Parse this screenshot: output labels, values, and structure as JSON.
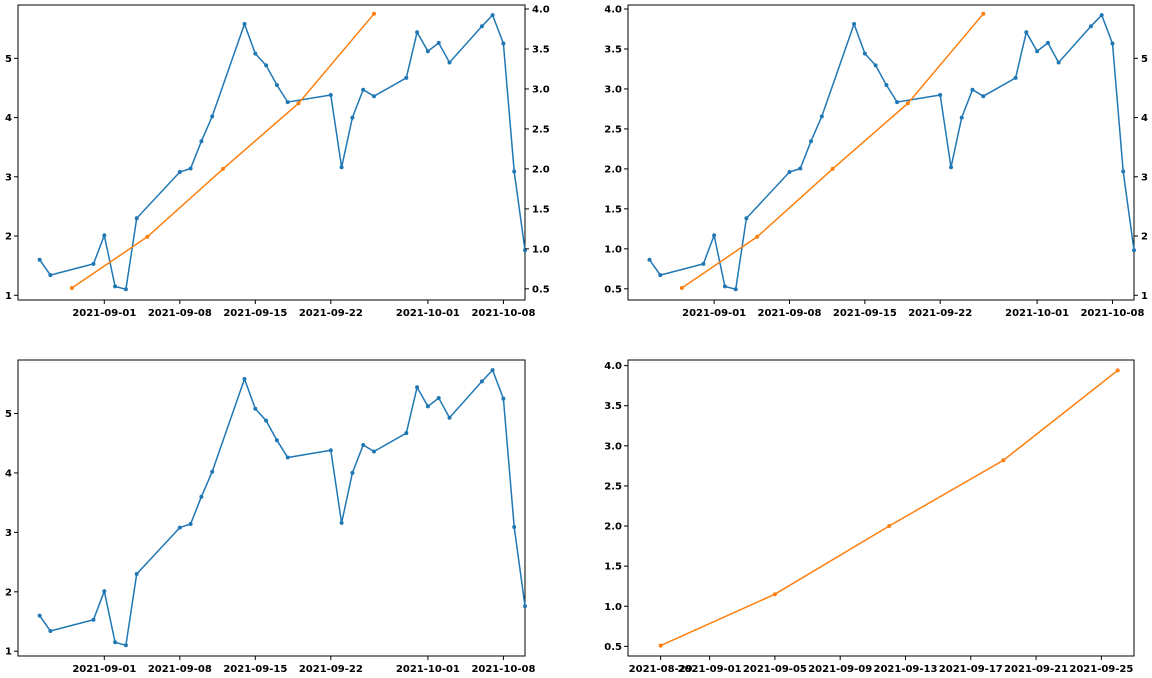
{
  "colors": {
    "blue": "#1f77b4",
    "orange": "#ff7f0e"
  },
  "chart_data": [
    {
      "panel": "top-left",
      "type": "line",
      "xlabel": "",
      "ylabel": "",
      "x_is_date": true,
      "xlim": [
        "2021-08-24",
        "2021-10-10"
      ],
      "ylim": [
        0.92,
        5.9
      ],
      "y2lim": [
        0.36,
        4.05
      ],
      "xticks": [
        "2021-09-01",
        "2021-09-08",
        "2021-09-15",
        "2021-09-22",
        "2021-10-01",
        "2021-10-08"
      ],
      "yticks": [
        "1",
        "2",
        "3",
        "4",
        "5"
      ],
      "y2ticks": [
        "0.5",
        "1.0",
        "1.5",
        "2.0",
        "2.5",
        "3.0",
        "3.5",
        "4.0"
      ],
      "grid": false,
      "series": [
        {
          "axis": "left",
          "color": "blue",
          "x": [
            "2021-08-26",
            "2021-08-27",
            "2021-08-31",
            "2021-09-01",
            "2021-09-02",
            "2021-09-03",
            "2021-09-04",
            "2021-09-08",
            "2021-09-09",
            "2021-09-10",
            "2021-09-11",
            "2021-09-14",
            "2021-09-15",
            "2021-09-16",
            "2021-09-17",
            "2021-09-18",
            "2021-09-22",
            "2021-09-23",
            "2021-09-24",
            "2021-09-25",
            "2021-09-26",
            "2021-09-29",
            "2021-09-30",
            "2021-10-01",
            "2021-10-02",
            "2021-10-03",
            "2021-10-06",
            "2021-10-07",
            "2021-10-08",
            "2021-10-09",
            "2021-10-10"
          ],
          "y": [
            1.6,
            1.34,
            1.53,
            2.01,
            1.15,
            1.1,
            2.3,
            3.08,
            3.14,
            3.6,
            4.02,
            5.58,
            5.08,
            4.88,
            4.55,
            4.26,
            4.38,
            3.16,
            4.0,
            4.47,
            4.36,
            4.67,
            5.44,
            5.12,
            5.26,
            4.93,
            5.54,
            5.73,
            5.25,
            3.09,
            1.76
          ]
        },
        {
          "axis": "right",
          "color": "orange",
          "x": [
            "2021-08-29",
            "2021-09-05",
            "2021-09-12",
            "2021-09-19",
            "2021-09-26"
          ],
          "y": [
            0.51,
            1.15,
            2.0,
            2.82,
            3.94
          ]
        }
      ]
    },
    {
      "panel": "top-right",
      "type": "line",
      "xlabel": "",
      "ylabel": "",
      "x_is_date": true,
      "xlim": [
        "2021-08-24",
        "2021-10-10"
      ],
      "ylim": [
        0.36,
        4.05
      ],
      "y2lim": [
        0.92,
        5.9
      ],
      "xticks": [
        "2021-09-01",
        "2021-09-08",
        "2021-09-15",
        "2021-09-22",
        "2021-10-01",
        "2021-10-08"
      ],
      "yticks": [
        "0.5",
        "1.0",
        "1.5",
        "2.0",
        "2.5",
        "3.0",
        "3.5",
        "4.0"
      ],
      "y2ticks": [
        "1",
        "2",
        "3",
        "4",
        "5"
      ],
      "grid": false,
      "series": [
        {
          "axis": "right",
          "color": "blue",
          "x": [
            "2021-08-26",
            "2021-08-27",
            "2021-08-31",
            "2021-09-01",
            "2021-09-02",
            "2021-09-03",
            "2021-09-04",
            "2021-09-08",
            "2021-09-09",
            "2021-09-10",
            "2021-09-11",
            "2021-09-14",
            "2021-09-15",
            "2021-09-16",
            "2021-09-17",
            "2021-09-18",
            "2021-09-22",
            "2021-09-23",
            "2021-09-24",
            "2021-09-25",
            "2021-09-26",
            "2021-09-29",
            "2021-09-30",
            "2021-10-01",
            "2021-10-02",
            "2021-10-03",
            "2021-10-06",
            "2021-10-07",
            "2021-10-08",
            "2021-10-09",
            "2021-10-10"
          ],
          "y": [
            1.6,
            1.34,
            1.53,
            2.01,
            1.15,
            1.1,
            2.3,
            3.08,
            3.14,
            3.6,
            4.02,
            5.58,
            5.08,
            4.88,
            4.55,
            4.26,
            4.38,
            3.16,
            4.0,
            4.47,
            4.36,
            4.67,
            5.44,
            5.12,
            5.26,
            4.93,
            5.54,
            5.73,
            5.25,
            3.09,
            1.76
          ]
        },
        {
          "axis": "left",
          "color": "orange",
          "x": [
            "2021-08-29",
            "2021-09-05",
            "2021-09-12",
            "2021-09-19",
            "2021-09-26"
          ],
          "y": [
            0.51,
            1.15,
            2.0,
            2.82,
            3.94
          ]
        }
      ]
    },
    {
      "panel": "bottom-left",
      "type": "line",
      "xlabel": "",
      "ylabel": "",
      "x_is_date": true,
      "xlim": [
        "2021-08-24",
        "2021-10-10"
      ],
      "ylim": [
        0.92,
        5.9
      ],
      "xticks": [
        "2021-09-01",
        "2021-09-08",
        "2021-09-15",
        "2021-09-22",
        "2021-10-01",
        "2021-10-08"
      ],
      "yticks": [
        "1",
        "2",
        "3",
        "4",
        "5"
      ],
      "grid": false,
      "series": [
        {
          "axis": "left",
          "color": "blue",
          "x": [
            "2021-08-26",
            "2021-08-27",
            "2021-08-31",
            "2021-09-01",
            "2021-09-02",
            "2021-09-03",
            "2021-09-04",
            "2021-09-08",
            "2021-09-09",
            "2021-09-10",
            "2021-09-11",
            "2021-09-14",
            "2021-09-15",
            "2021-09-16",
            "2021-09-17",
            "2021-09-18",
            "2021-09-22",
            "2021-09-23",
            "2021-09-24",
            "2021-09-25",
            "2021-09-26",
            "2021-09-29",
            "2021-09-30",
            "2021-10-01",
            "2021-10-02",
            "2021-10-03",
            "2021-10-06",
            "2021-10-07",
            "2021-10-08",
            "2021-10-09",
            "2021-10-10"
          ],
          "y": [
            1.6,
            1.34,
            1.53,
            2.01,
            1.15,
            1.1,
            2.3,
            3.08,
            3.14,
            3.6,
            4.02,
            5.58,
            5.08,
            4.88,
            4.55,
            4.26,
            4.38,
            3.16,
            4.0,
            4.47,
            4.36,
            4.67,
            5.44,
            5.12,
            5.26,
            4.93,
            5.54,
            5.73,
            5.25,
            3.09,
            1.76
          ]
        }
      ]
    },
    {
      "panel": "bottom-right",
      "type": "line",
      "xlabel": "",
      "ylabel": "",
      "x_is_date": true,
      "xlim": [
        "2021-08-27",
        "2021-09-27"
      ],
      "ylim": [
        0.38,
        4.07
      ],
      "xticks": [
        "2021-08-29",
        "2021-09-01",
        "2021-09-05",
        "2021-09-09",
        "2021-09-13",
        "2021-09-17",
        "2021-09-21",
        "2021-09-25"
      ],
      "yticks": [
        "0.5",
        "1.0",
        "1.5",
        "2.0",
        "2.5",
        "3.0",
        "3.5",
        "4.0"
      ],
      "grid": false,
      "series": [
        {
          "axis": "left",
          "color": "orange",
          "x": [
            "2021-08-29",
            "2021-09-05",
            "2021-09-12",
            "2021-09-19",
            "2021-09-26"
          ],
          "y": [
            0.51,
            1.15,
            2.0,
            2.82,
            3.94
          ]
        }
      ]
    }
  ]
}
